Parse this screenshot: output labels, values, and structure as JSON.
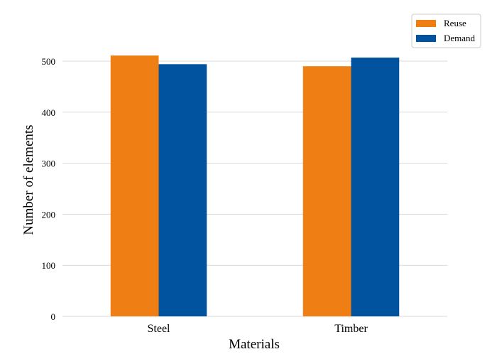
{
  "chart_data": {
    "type": "bar",
    "categories": [
      "Steel",
      "Timber"
    ],
    "series": [
      {
        "name": "Reuse",
        "values": [
          511,
          490
        ],
        "color": "#ef7f15"
      },
      {
        "name": "Demand",
        "values": [
          494,
          507
        ],
        "color": "#01529f"
      }
    ],
    "xlabel": "Materials",
    "ylabel": "Number of elements",
    "ylim": [
      0,
      500
    ],
    "yticks": [
      0,
      100,
      200,
      300,
      400,
      500
    ],
    "grid": "horizontal",
    "legend_position": "top-right",
    "title": ""
  }
}
